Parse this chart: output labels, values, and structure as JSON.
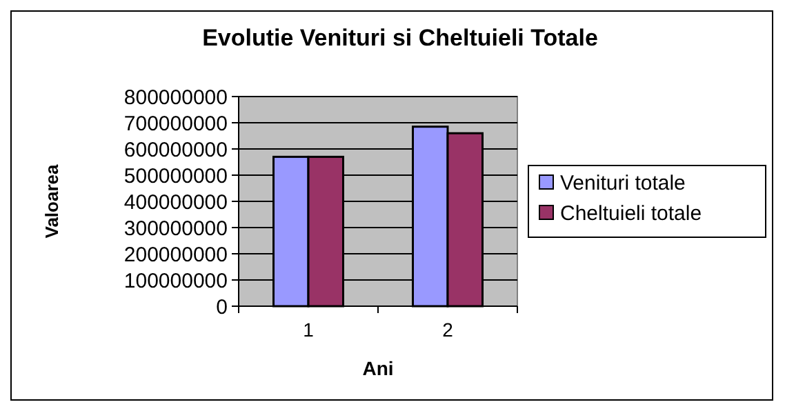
{
  "chart_data": {
    "type": "bar",
    "title": "Evolutie Venituri si Cheltuieli Totale",
    "xlabel": "Ani",
    "ylabel": "Valoarea",
    "categories": [
      "1",
      "2"
    ],
    "series": [
      {
        "name": "Venituri totale",
        "color": "#9999ff",
        "values": [
          570000000,
          685000000
        ]
      },
      {
        "name": "Cheltuieli totale",
        "color": "#993366",
        "values": [
          570000000,
          660000000
        ]
      }
    ],
    "ylim": [
      0,
      800000000
    ],
    "yticks": [
      0,
      100000000,
      200000000,
      300000000,
      400000000,
      500000000,
      600000000,
      700000000,
      800000000
    ],
    "grid": "y",
    "legend": "right"
  }
}
